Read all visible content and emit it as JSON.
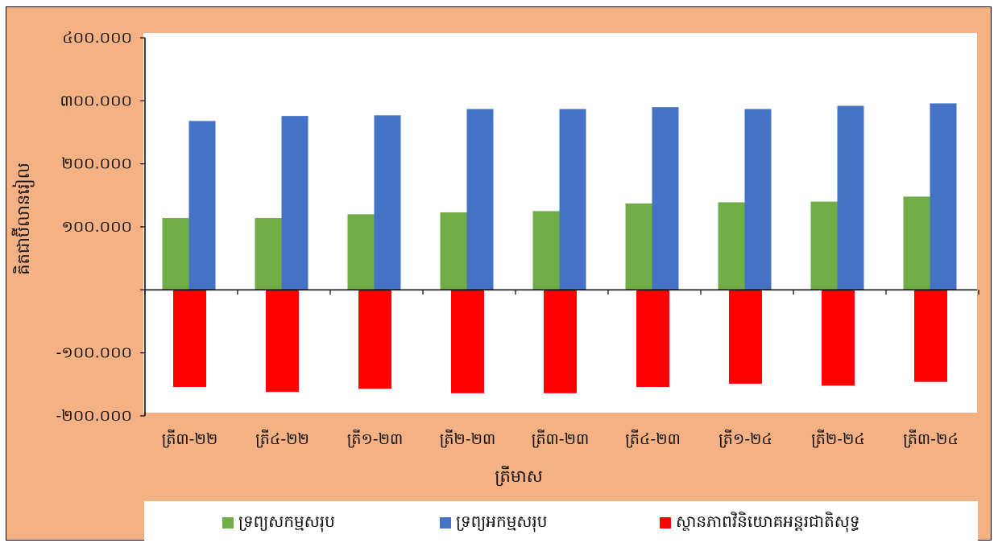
{
  "chart_data": {
    "type": "bar",
    "xlabel": "ត្រីមាស",
    "ylabel": "គិតជាប៊ីលានរៀល",
    "ylim": [
      -200000,
      400000
    ],
    "y_ticks": [
      {
        "value": 400000,
        "label": "៤០០.០០០"
      },
      {
        "value": 300000,
        "label": "៣០០.០០០"
      },
      {
        "value": 200000,
        "label": "២០០.០០០"
      },
      {
        "value": 100000,
        "label": "១០០.០០០"
      },
      {
        "value": 0,
        "label": ""
      },
      {
        "value": -100000,
        "label": "-១០០.០០០"
      },
      {
        "value": -200000,
        "label": "-២០០.០០០"
      }
    ],
    "categories": [
      "ត្រី៣-២២",
      "ត្រី៤-២២",
      "ត្រី១-២៣",
      "ត្រី២-២៣",
      "ត្រី៣-២៣",
      "ត្រី៤-២៣",
      "ត្រី១-២៤",
      "ត្រី២-២៤",
      "ត្រី៣-២៤"
    ],
    "series": [
      {
        "name": "ទ្រព្យសកម្មសរុប",
        "color": "#70AD47",
        "values": [
          114000,
          114000,
          120000,
          123000,
          125000,
          137000,
          139000,
          140000,
          148000
        ]
      },
      {
        "name": "ទ្រព្យអកម្មសរុប",
        "color": "#4472C4",
        "values": [
          268000,
          276000,
          277000,
          287000,
          287000,
          290000,
          287000,
          292000,
          296000
        ]
      },
      {
        "name": "ស្ថានភាពវិនិយោគអន្តរជាតិសុទ្ធ",
        "color": "#FF0000",
        "values": [
          -154000,
          -162000,
          -157000,
          -164000,
          -164000,
          -154000,
          -149000,
          -152000,
          -146000
        ]
      }
    ],
    "grid": false,
    "legend_position": "bottom"
  }
}
